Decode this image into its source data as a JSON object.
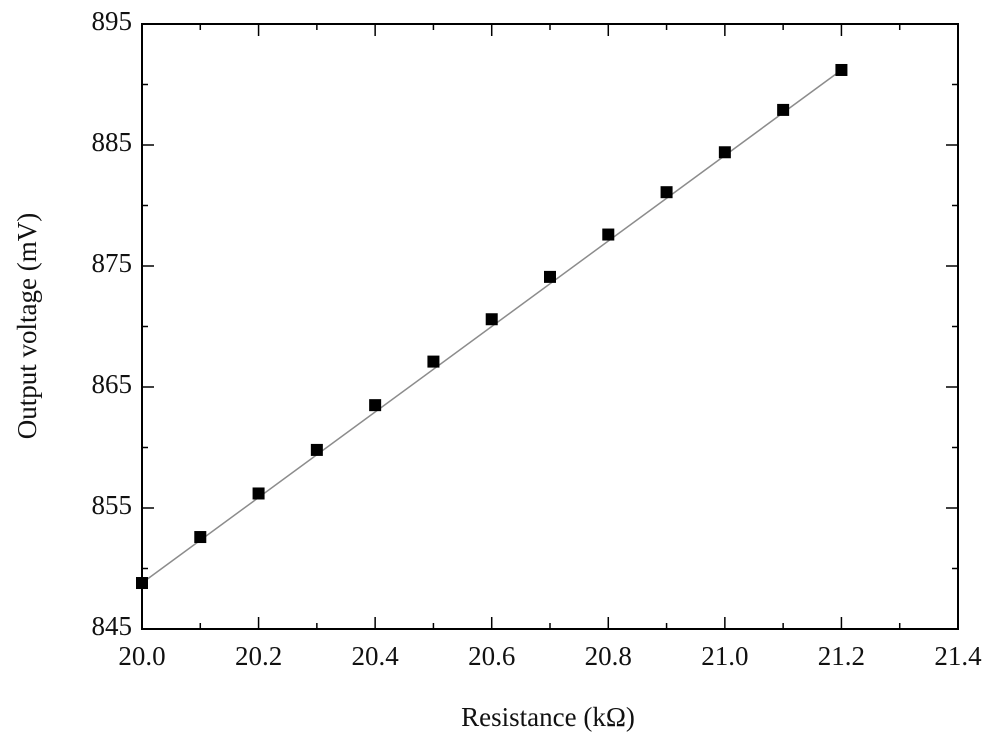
{
  "chart_data": {
    "type": "scatter",
    "xlabel": "Resistance (kΩ)",
    "ylabel": "Output voltage (mV)",
    "series": [
      {
        "color": "#000000",
        "x": [
          20.0,
          20.1,
          20.2,
          20.3,
          20.4,
          20.5,
          20.6,
          20.7,
          20.8,
          20.9,
          21.0,
          21.1,
          21.2
        ],
        "values": [
          848.8,
          852.6,
          856.2,
          859.8,
          863.5,
          867.1,
          870.6,
          874.1,
          877.6,
          881.1,
          884.4,
          887.9,
          891.2
        ]
      }
    ],
    "fit": {
      "color": "#8c8c8c",
      "x": [
        20.0,
        21.2
      ],
      "values": [
        848.8,
        891.2
      ]
    },
    "xlim": [
      20.0,
      21.4
    ],
    "xticks": [
      {
        "value": 20,
        "label": "20.0"
      },
      20.2,
      20.4,
      20.6,
      20.8,
      {
        "value": 21,
        "label": "21.0"
      },
      21.2,
      21.4
    ],
    "x_minor_ticks": [
      20.1,
      20.3,
      20.5,
      20.7,
      20.9,
      21.1,
      21.3
    ],
    "ylim": [
      845,
      895
    ],
    "yticks": [
      845,
      855,
      865,
      875,
      885,
      895
    ],
    "y_minor_ticks": [
      850,
      860,
      870,
      880,
      890
    ],
    "grid": false
  }
}
